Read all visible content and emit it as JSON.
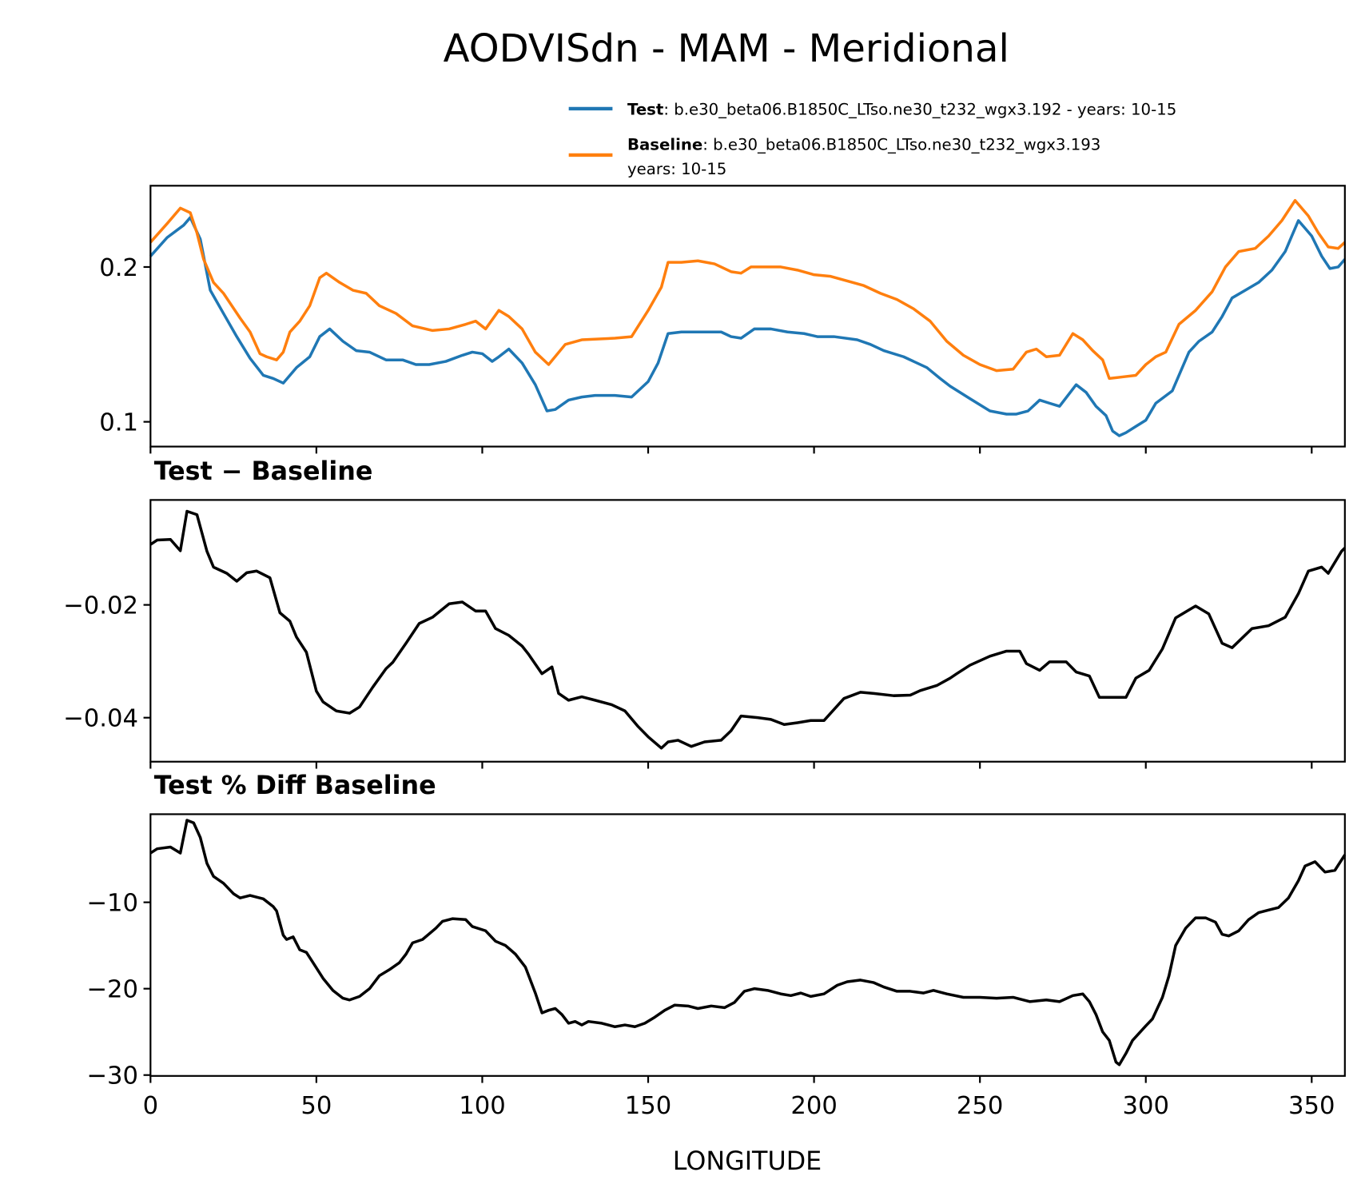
{
  "chart_data": [
    {
      "type": "line",
      "title": "AODVISdn - MAM - Meridional",
      "xlabel": "",
      "ylabel": "",
      "xlim": [
        0,
        360
      ],
      "ylim": [
        0.084,
        0.2525
      ],
      "xticks": [
        0,
        50,
        100,
        150,
        200,
        250,
        300,
        350
      ],
      "yticks": [
        0.1,
        0.2
      ],
      "ytick_labels": [
        "0.1",
        "0.2"
      ],
      "legend": {
        "placement": "above-right",
        "entries": [
          {
            "name": "Test",
            "text": ": b.e30_beta06.B1850C_LTso.ne30_t232_wgx3.192 - years: 10-15",
            "color": "#1f77b4"
          },
          {
            "name": "Baseline",
            "text": ": b.e30_beta06.B1850C_LTso.ne30_t232_wgx3.193",
            "text2": "years: 10-15",
            "color": "#ff7f0e"
          }
        ]
      },
      "series": [
        {
          "name": "Test",
          "color": "#1f77b4",
          "x": [
            0,
            5,
            10,
            12,
            15,
            18,
            22,
            26,
            30,
            34,
            37,
            40,
            44,
            48,
            51,
            54,
            58,
            62,
            66,
            71,
            76,
            80,
            84,
            89,
            94,
            97,
            100,
            103,
            105,
            108,
            112,
            116,
            119.5,
            122,
            126,
            130,
            134,
            140,
            145,
            150,
            153,
            156,
            160,
            168,
            172,
            175,
            178,
            182,
            187,
            192,
            197,
            201,
            206,
            213,
            217,
            221,
            227,
            234,
            238,
            241,
            247,
            253,
            258,
            261,
            264.5,
            268,
            271,
            274,
            279,
            282,
            285,
            288,
            290,
            292,
            294,
            297,
            300,
            303,
            308,
            310,
            313,
            316,
            320,
            323,
            326,
            330,
            334,
            338,
            342,
            344,
            346,
            348,
            350,
            353,
            355.5,
            358,
            360
          ],
          "y": [
            0.207,
            0.219,
            0.227,
            0.232,
            0.218,
            0.185,
            0.17,
            0.155,
            0.141,
            0.13,
            0.128,
            0.125,
            0.135,
            0.142,
            0.155,
            0.16,
            0.152,
            0.146,
            0.145,
            0.14,
            0.14,
            0.137,
            0.137,
            0.139,
            0.143,
            0.145,
            0.144,
            0.139,
            0.142,
            0.147,
            0.138,
            0.124,
            0.107,
            0.108,
            0.114,
            0.116,
            0.117,
            0.117,
            0.116,
            0.126,
            0.138,
            0.157,
            0.158,
            0.158,
            0.158,
            0.155,
            0.154,
            0.16,
            0.16,
            0.158,
            0.157,
            0.155,
            0.155,
            0.153,
            0.15,
            0.146,
            0.142,
            0.135,
            0.128,
            0.123,
            0.115,
            0.107,
            0.105,
            0.105,
            0.107,
            0.114,
            0.112,
            0.11,
            0.124,
            0.119,
            0.11,
            0.104,
            0.094,
            0.091,
            0.093,
            0.097,
            0.101,
            0.112,
            0.12,
            0.13,
            0.145,
            0.152,
            0.158,
            0.168,
            0.18,
            0.185,
            0.19,
            0.198,
            0.21,
            0.22,
            0.23,
            0.225,
            0.22,
            0.207,
            0.199,
            0.2,
            0.205
          ]
        },
        {
          "name": "Baseline",
          "color": "#ff7f0e",
          "x": [
            0,
            5,
            9,
            12,
            14,
            16,
            19,
            22,
            27,
            30,
            33,
            35,
            38,
            40,
            42,
            45,
            48,
            51,
            53,
            57,
            61,
            65,
            69,
            74,
            79,
            85,
            90,
            95,
            98,
            101,
            105,
            108,
            112,
            116,
            120,
            125,
            130,
            140,
            145,
            150,
            154,
            156,
            160,
            165,
            170,
            175,
            178,
            181,
            190,
            195,
            200,
            205,
            210,
            215,
            220,
            225,
            230,
            235,
            240,
            245,
            250,
            255,
            260,
            264,
            267,
            270,
            274,
            278,
            281,
            284,
            287,
            289,
            293,
            297,
            300,
            303,
            306,
            310,
            315,
            320,
            324,
            328,
            333,
            337,
            341,
            345,
            349,
            352,
            355,
            358,
            360
          ],
          "y": [
            0.216,
            0.228,
            0.238,
            0.235,
            0.222,
            0.205,
            0.19,
            0.183,
            0.167,
            0.158,
            0.144,
            0.142,
            0.14,
            0.145,
            0.158,
            0.165,
            0.175,
            0.193,
            0.196,
            0.19,
            0.185,
            0.183,
            0.175,
            0.17,
            0.162,
            0.159,
            0.16,
            0.163,
            0.165,
            0.16,
            0.172,
            0.168,
            0.16,
            0.145,
            0.137,
            0.15,
            0.153,
            0.154,
            0.155,
            0.172,
            0.187,
            0.203,
            0.203,
            0.204,
            0.202,
            0.197,
            0.196,
            0.2,
            0.2,
            0.198,
            0.195,
            0.194,
            0.191,
            0.188,
            0.183,
            0.179,
            0.173,
            0.165,
            0.152,
            0.143,
            0.137,
            0.133,
            0.134,
            0.145,
            0.147,
            0.142,
            0.143,
            0.157,
            0.153,
            0.146,
            0.14,
            0.128,
            0.129,
            0.13,
            0.137,
            0.142,
            0.145,
            0.163,
            0.172,
            0.184,
            0.2,
            0.21,
            0.212,
            0.22,
            0.23,
            0.243,
            0.233,
            0.222,
            0.213,
            0.212,
            0.216
          ]
        }
      ]
    },
    {
      "type": "line",
      "title": "Test − Baseline",
      "xlim": [
        0,
        360
      ],
      "ylim": [
        -0.0478,
        -0.0014
      ],
      "xticks": [
        0,
        50,
        100,
        150,
        200,
        250,
        300,
        350
      ],
      "yticks": [
        -0.02,
        -0.04
      ],
      "ytick_labels": [
        "−0.02",
        "−0.04"
      ],
      "series": [
        {
          "name": "Test − Baseline",
          "color": "#000000",
          "x": [
            0,
            2,
            6,
            9,
            11,
            14,
            17,
            19,
            23,
            26,
            29,
            32,
            36,
            39,
            42,
            44,
            47,
            50,
            52,
            56,
            60,
            63,
            67,
            71,
            73,
            77,
            81,
            85,
            90,
            94,
            98,
            101,
            104,
            108,
            112,
            114,
            118,
            121,
            123,
            126,
            130,
            134,
            139,
            143,
            147,
            150,
            154,
            156,
            159,
            163,
            167,
            172,
            175,
            178,
            183,
            187,
            191,
            195,
            199,
            203,
            205,
            209,
            214,
            218,
            224,
            229,
            232,
            237,
            241,
            243,
            247,
            253,
            258,
            262,
            264,
            268,
            271,
            274,
            276,
            279,
            283,
            286,
            290,
            294,
            297,
            301,
            305,
            309,
            315,
            319,
            323,
            326,
            332,
            337,
            342,
            346,
            349,
            353,
            355,
            359,
            360
          ],
          "y": [
            -0.0093,
            -0.0085,
            -0.0084,
            -0.0104,
            -0.0034,
            -0.004,
            -0.0105,
            -0.0133,
            -0.0144,
            -0.0158,
            -0.0143,
            -0.014,
            -0.0152,
            -0.0214,
            -0.0229,
            -0.0257,
            -0.0284,
            -0.0353,
            -0.0372,
            -0.0388,
            -0.0392,
            -0.0381,
            -0.0346,
            -0.0313,
            -0.0302,
            -0.0268,
            -0.0233,
            -0.0222,
            -0.0198,
            -0.0195,
            -0.0211,
            -0.0211,
            -0.0242,
            -0.0254,
            -0.0273,
            -0.0288,
            -0.0322,
            -0.031,
            -0.0357,
            -0.0369,
            -0.0363,
            -0.0369,
            -0.0377,
            -0.0388,
            -0.0416,
            -0.0434,
            -0.0454,
            -0.0443,
            -0.044,
            -0.0451,
            -0.0443,
            -0.044,
            -0.0423,
            -0.0397,
            -0.04,
            -0.0403,
            -0.0412,
            -0.0409,
            -0.0405,
            -0.0405,
            -0.0392,
            -0.0366,
            -0.0355,
            -0.0357,
            -0.0361,
            -0.036,
            -0.0352,
            -0.0343,
            -0.033,
            -0.0322,
            -0.0307,
            -0.0291,
            -0.0282,
            -0.0282,
            -0.0304,
            -0.0316,
            -0.0301,
            -0.0301,
            -0.0301,
            -0.0319,
            -0.0326,
            -0.0364,
            -0.0364,
            -0.0364,
            -0.033,
            -0.0316,
            -0.0278,
            -0.0223,
            -0.0202,
            -0.0216,
            -0.0268,
            -0.0276,
            -0.0242,
            -0.0237,
            -0.0222,
            -0.018,
            -0.014,
            -0.0133,
            -0.0144,
            -0.0105,
            -0.0099
          ]
        }
      ]
    },
    {
      "type": "line",
      "title": "Test % Diff Baseline",
      "xlabel": "LONGITUDE",
      "xlim": [
        0,
        360
      ],
      "ylim": [
        -30.1,
        0.2
      ],
      "xticks": [
        0,
        50,
        100,
        150,
        200,
        250,
        300,
        350
      ],
      "xtick_labels": [
        "0",
        "50",
        "100",
        "150",
        "200",
        "250",
        "300",
        "350"
      ],
      "yticks": [
        -10,
        -20,
        -30
      ],
      "ytick_labels": [
        "−10",
        "−20",
        "−30"
      ],
      "series": [
        {
          "name": "Test % Diff Baseline",
          "color": "#000000",
          "x": [
            0,
            2,
            6,
            9,
            11,
            13,
            15,
            17,
            19,
            22,
            25,
            27,
            30,
            34,
            37,
            38,
            40,
            41,
            43,
            45,
            47,
            49,
            52,
            55,
            58,
            60,
            63,
            66,
            69,
            72,
            75,
            77,
            79,
            82,
            86,
            88,
            91,
            95,
            97,
            101,
            104,
            107,
            110,
            113,
            116,
            118,
            120,
            122,
            124,
            126,
            128,
            130,
            132,
            136,
            140,
            143,
            146,
            149,
            152,
            155,
            158,
            162,
            165,
            169,
            173,
            176,
            179,
            182,
            186,
            190,
            193,
            196,
            199,
            203,
            207,
            210,
            214,
            218,
            221,
            225,
            229,
            233,
            236,
            240,
            245,
            250,
            255,
            260,
            265,
            270,
            274,
            278,
            281,
            283,
            285,
            287,
            289,
            291,
            292,
            294,
            296,
            300,
            302,
            305,
            307,
            309,
            312,
            315,
            318,
            321,
            323,
            325,
            328,
            331,
            334,
            337,
            340,
            343,
            346,
            348,
            351,
            354,
            357,
            360
          ],
          "y": [
            -4.3,
            -3.8,
            -3.6,
            -4.3,
            -0.5,
            -0.8,
            -2.5,
            -5.5,
            -7.0,
            -7.8,
            -9.0,
            -9.5,
            -9.2,
            -9.6,
            -10.5,
            -11.0,
            -13.8,
            -14.3,
            -14.0,
            -15.5,
            -15.8,
            -17.0,
            -18.8,
            -20.2,
            -21.1,
            -21.3,
            -20.9,
            -20.0,
            -18.5,
            -17.8,
            -17.0,
            -16.0,
            -14.7,
            -14.3,
            -13.0,
            -12.2,
            -11.9,
            -12.0,
            -12.8,
            -13.3,
            -14.5,
            -15.0,
            -16.0,
            -17.5,
            -20.5,
            -22.8,
            -22.5,
            -22.3,
            -23.0,
            -24.0,
            -23.8,
            -24.2,
            -23.8,
            -24.0,
            -24.4,
            -24.2,
            -24.4,
            -24.0,
            -23.3,
            -22.5,
            -21.9,
            -22.0,
            -22.3,
            -22.0,
            -22.2,
            -21.6,
            -20.3,
            -20.0,
            -20.2,
            -20.6,
            -20.8,
            -20.5,
            -20.9,
            -20.6,
            -19.6,
            -19.2,
            -19.0,
            -19.3,
            -19.8,
            -20.3,
            -20.3,
            -20.5,
            -20.2,
            -20.6,
            -21.0,
            -21.0,
            -21.1,
            -21.0,
            -21.5,
            -21.3,
            -21.5,
            -20.8,
            -20.6,
            -21.5,
            -23.0,
            -25.0,
            -26.0,
            -28.5,
            -28.8,
            -27.5,
            -26.0,
            -24.3,
            -23.5,
            -21.0,
            -18.5,
            -15.0,
            -13.0,
            -11.8,
            -11.8,
            -12.3,
            -13.7,
            -13.9,
            -13.3,
            -12.0,
            -11.2,
            -10.9,
            -10.6,
            -9.5,
            -7.5,
            -5.8,
            -5.3,
            -6.5,
            -6.3,
            -4.5
          ]
        }
      ]
    }
  ]
}
